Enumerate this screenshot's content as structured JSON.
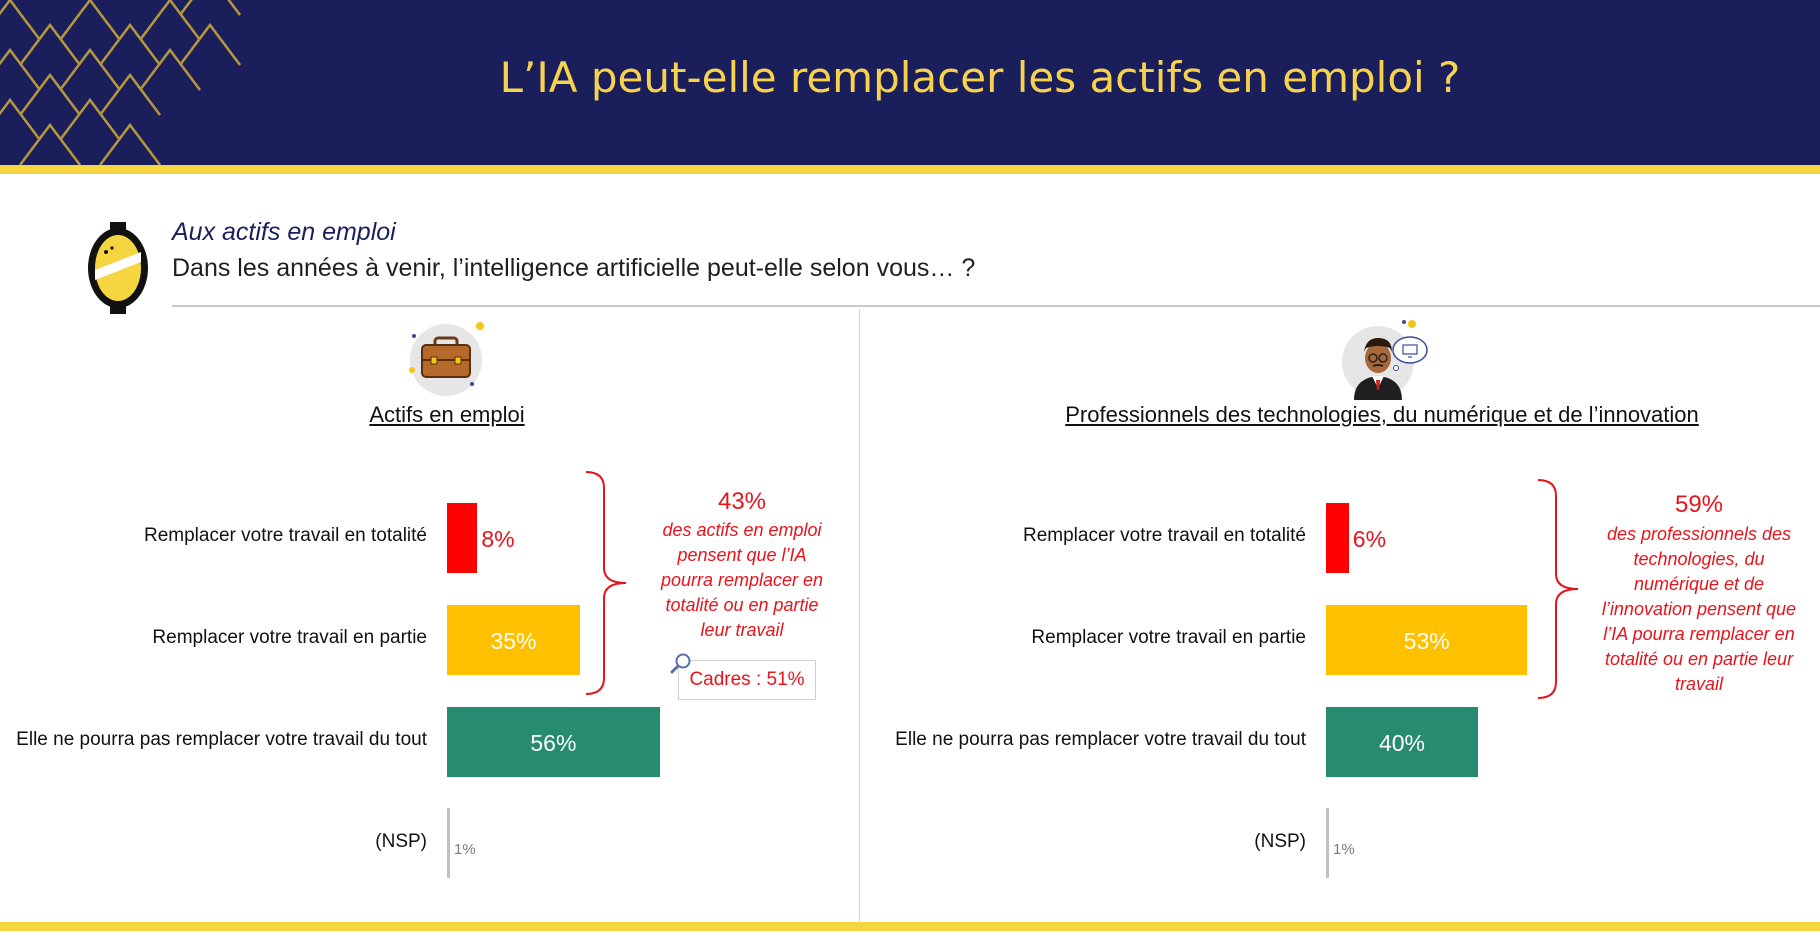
{
  "header": {
    "title": "L’IA peut-elle remplacer les actifs en emploi ?"
  },
  "question": {
    "audience": "Aux actifs en emploi",
    "text": "Dans les années à venir, l’intelligence artificielle peut-elle selon vous… ?"
  },
  "colors": {
    "header_bg": "#1a1f5c",
    "title": "#f7d24d",
    "accent_rule": "#f5d540",
    "totality": "#ff0000",
    "partial": "#ffc000",
    "not_at_all": "#268b6f",
    "nsp": "#bfbfbf",
    "callout": "#e8141b"
  },
  "icons": {
    "logo": "lemon-logo-icon",
    "panel_1": "briefcase-icon",
    "panel_2": "tech-professional-icon",
    "note": "magnifier-icon"
  },
  "chart_data": [
    {
      "type": "bar",
      "orientation": "horizontal",
      "title": "Actifs en emploi",
      "categories": [
        "Remplacer votre travail en totalité",
        "Remplacer votre travail en partie",
        "Elle ne pourra pas remplacer votre travail du tout",
        "(NSP)"
      ],
      "values": [
        8,
        35,
        56,
        1
      ],
      "value_labels": [
        "8%",
        "35%",
        "56%",
        "1%"
      ],
      "bar_colors": [
        "#ff0000",
        "#ffc000",
        "#268b6f",
        "#bfbfbf"
      ],
      "xlim": [
        0,
        100
      ],
      "grid": false,
      "callout": {
        "value": "43%",
        "text": "des actifs en emploi pensent que l’IA pourra remplacer en totalité ou en partie leur travail"
      },
      "note": "Cadres : 51%"
    },
    {
      "type": "bar",
      "orientation": "horizontal",
      "title": "Professionnels des technologies, du numérique et de l’innovation",
      "categories": [
        "Remplacer votre travail en totalité",
        "Remplacer votre travail en partie",
        "Elle ne pourra pas remplacer votre travail du tout",
        "(NSP)"
      ],
      "values": [
        6,
        53,
        40,
        1
      ],
      "value_labels": [
        "6%",
        "53%",
        "40%",
        "1%"
      ],
      "bar_colors": [
        "#ff0000",
        "#ffc000",
        "#268b6f",
        "#bfbfbf"
      ],
      "xlim": [
        0,
        100
      ],
      "grid": false,
      "callout": {
        "value": "59%",
        "text": "des professionnels des technologies, du numérique et de l’innovation pensent que l’IA pourra remplacer en totalité ou en partie leur travail"
      }
    }
  ]
}
